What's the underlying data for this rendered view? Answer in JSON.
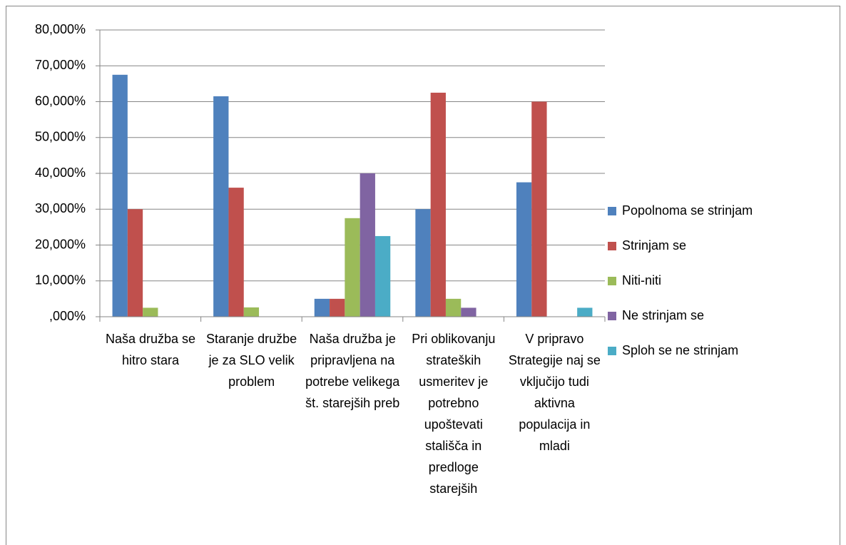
{
  "chart_data": {
    "type": "bar",
    "categories": [
      "Naša družba se hitro stara",
      "Staranje družbe je za SLO velik problem",
      "Naša družba je pripravljena na potrebe velikega št. starejših preb",
      "Pri oblikovanju strateških usmeritev je potrebno upoštevati stališča in predloge starejših",
      "V pripravo Strategije naj se vključijo tudi aktivna populacija in mladi"
    ],
    "series": [
      {
        "name": "Popolnoma se strinjam",
        "color": "#4f81bd",
        "values": [
          67.5,
          61.5,
          5,
          30,
          37.5
        ]
      },
      {
        "name": "Strinjam se",
        "color": "#c0504d",
        "values": [
          30,
          36,
          5,
          62.5,
          60
        ]
      },
      {
        "name": "Niti-niti",
        "color": "#9bbb59",
        "values": [
          2.5,
          2.6,
          27.5,
          5,
          0
        ]
      },
      {
        "name": "Ne strinjam se",
        "color": "#8064a2",
        "values": [
          0,
          0,
          40,
          2.5,
          0
        ]
      },
      {
        "name": "Sploh se ne strinjam",
        "color": "#4bacc6",
        "values": [
          0,
          0,
          22.5,
          0,
          2.5
        ]
      }
    ],
    "ylim": [
      0,
      80
    ],
    "yticks": [
      {
        "value": 0,
        "label": ",000%"
      },
      {
        "value": 10,
        "label": "10,000%"
      },
      {
        "value": 20,
        "label": "20,000%"
      },
      {
        "value": 30,
        "label": "30,000%"
      },
      {
        "value": 40,
        "label": "40,000%"
      },
      {
        "value": 50,
        "label": "50,000%"
      },
      {
        "value": 60,
        "label": "60,000%"
      },
      {
        "value": 70,
        "label": "70,000%"
      },
      {
        "value": 80,
        "label": "80,000%"
      }
    ],
    "grid": true,
    "legend": "right"
  }
}
